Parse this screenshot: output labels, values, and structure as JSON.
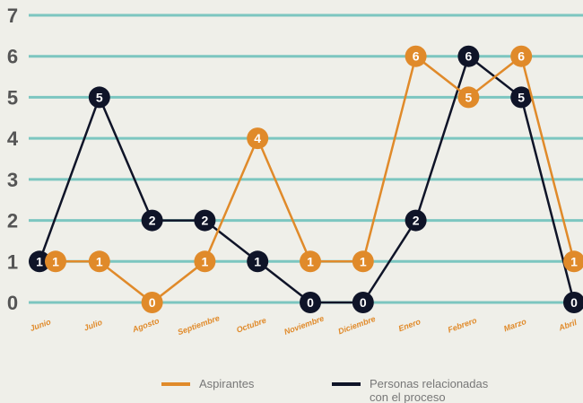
{
  "chart_data": {
    "type": "line",
    "categories": [
      "Junio",
      "Julio",
      "Agosto",
      "Septiembre",
      "Octubre",
      "Noviembre",
      "Diciembre",
      "Enero",
      "Febrero",
      "Marzo",
      "Abril"
    ],
    "series": [
      {
        "name": "Aspirantes",
        "color": "#e08a2a",
        "values": [
          1,
          1,
          0,
          1,
          4,
          1,
          1,
          6,
          5,
          6,
          1
        ]
      },
      {
        "name": "Personas relacionadas con el proceso",
        "color": "#0f1428",
        "values": [
          1,
          5,
          2,
          2,
          1,
          0,
          0,
          2,
          6,
          5,
          0
        ]
      }
    ],
    "ylim": [
      0,
      7
    ],
    "yticks": [
      0,
      1,
      2,
      3,
      4,
      5,
      6,
      7
    ],
    "grid": true,
    "grid_color": "#7cc6c0"
  }
}
